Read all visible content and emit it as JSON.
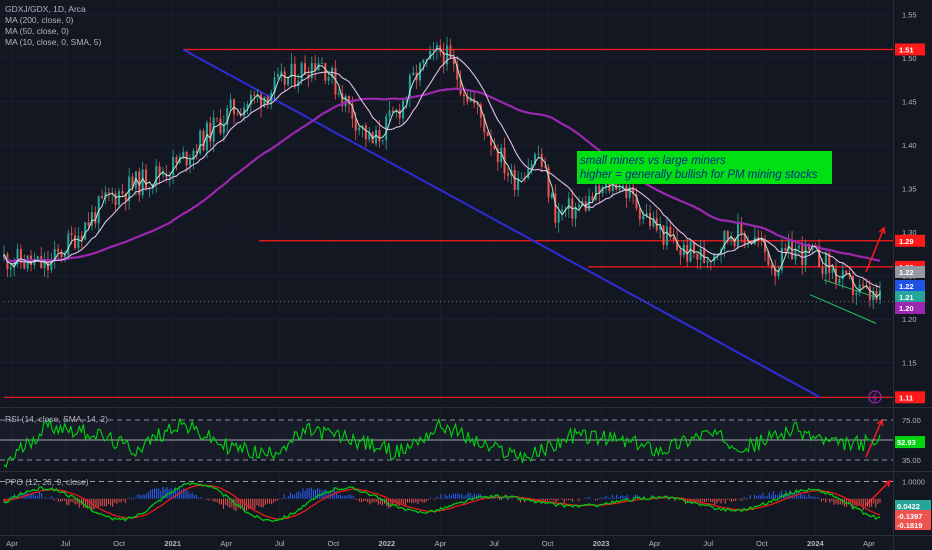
{
  "header": {
    "legend_main": "GDXJ/GDX, 1D, Arca",
    "legend_ma200": "MA (200, close, 0)",
    "legend_ma50": "MA (50, close, 0)",
    "legend_ma10": "MA (10, close, 0, SMA, 5)",
    "legend_rsi": "RSI (14, close, SMA, 14, 2)",
    "legend_ppo": "PPO (12, 26, 9, close)"
  },
  "annotation": {
    "line1": "small miners vs large miners",
    "line2": "higher = generally bullish for PM mining stocks",
    "bg": "#00e012"
  },
  "colors": {
    "background": "#131722",
    "candle_up": "#26a69a",
    "candle_down": "#ef5350",
    "ma200": "#9c27b0",
    "ma50": "#e1bee7",
    "ma10": "#bfe9d6",
    "trendline": "#2c2cd9",
    "level_lines": "#ff1a1a",
    "rsi_line": "#00d40f",
    "ppo_line": "#00c80f",
    "ppo_signal": "#e81a1a"
  },
  "chart_data": [
    {
      "type": "line",
      "title": "GDXJ/GDX, 1D, Arca",
      "y_axis_ticks": [
        "1.55",
        "1.50",
        "1.45",
        "1.40",
        "1.35",
        "1.30",
        "1.25",
        "1.20",
        "1.15"
      ],
      "ylim": [
        1.1,
        1.56
      ],
      "x_ticks": [
        "Apr",
        "Jul",
        "Oct",
        "2021",
        "Apr",
        "Jul",
        "Oct",
        "2022",
        "Apr",
        "Jul",
        "Oct",
        "2023",
        "Apr",
        "Jul",
        "Oct",
        "2024",
        "Apr"
      ],
      "price_x": [
        0,
        0.05,
        0.12,
        0.2,
        0.26,
        0.3,
        0.33,
        0.36,
        0.39,
        0.42,
        0.45,
        0.47,
        0.5,
        0.54,
        0.58,
        0.61,
        0.63,
        0.66,
        0.7,
        0.74,
        0.77,
        0.8,
        0.83,
        0.86,
        0.88,
        0.9,
        0.93,
        0.96,
        1.0
      ],
      "price_values": [
        1.27,
        1.26,
        1.34,
        1.38,
        1.44,
        1.46,
        1.48,
        1.5,
        1.45,
        1.4,
        1.44,
        1.48,
        1.51,
        1.44,
        1.36,
        1.39,
        1.32,
        1.33,
        1.36,
        1.31,
        1.28,
        1.27,
        1.3,
        1.29,
        1.26,
        1.28,
        1.27,
        1.24,
        1.22
      ],
      "levels": [
        {
          "label": "1.51",
          "value": 1.51
        },
        {
          "label": "1.29",
          "value": 1.29
        },
        {
          "label": "1.26",
          "value": 1.26
        },
        {
          "label": "1.11",
          "value": 1.11
        }
      ],
      "tags": [
        {
          "label": "1.22",
          "value": 1.22,
          "bg": "#9598a1"
        },
        {
          "label": "1.22",
          "value": 1.22,
          "bg": "#1e53e5"
        },
        {
          "label": "1.21",
          "value": 1.21,
          "bg": "#26a69a"
        },
        {
          "label": "1.20",
          "value": 1.2,
          "bg": "#9c27b0"
        }
      ],
      "series": [
        {
          "name": "MA (200, close, 0)"
        },
        {
          "name": "MA (50, close, 0)"
        },
        {
          "name": "MA (10, close, 0, SMA, 5)"
        }
      ]
    },
    {
      "type": "line",
      "title": "RSI (14, close, SMA, 14, 2)",
      "y_axis_ticks": [
        "75.00",
        "35.00"
      ],
      "ylim": [
        25,
        85
      ],
      "last_value": "52.93",
      "series": [
        {
          "name": "RSI",
          "x": [
            0,
            0.05,
            0.1,
            0.15,
            0.2,
            0.25,
            0.3,
            0.35,
            0.4,
            0.45,
            0.5,
            0.55,
            0.6,
            0.65,
            0.7,
            0.75,
            0.8,
            0.85,
            0.9,
            0.95,
            1.0
          ],
          "values": [
            30,
            70,
            62,
            45,
            72,
            50,
            40,
            65,
            55,
            42,
            70,
            48,
            38,
            60,
            55,
            45,
            62,
            48,
            66,
            50,
            53
          ]
        }
      ]
    },
    {
      "type": "line",
      "title": "PPO (12, 26, 9, close)",
      "y_axis_ticks": [
        "1.0000"
      ],
      "ylim": [
        -2.0,
        1.5
      ],
      "last_values": [
        "0.0422",
        "-0.1397",
        "-0.1819"
      ],
      "series": [
        {
          "name": "PPO"
        },
        {
          "name": "Signal"
        },
        {
          "name": "Histogram"
        }
      ]
    }
  ]
}
